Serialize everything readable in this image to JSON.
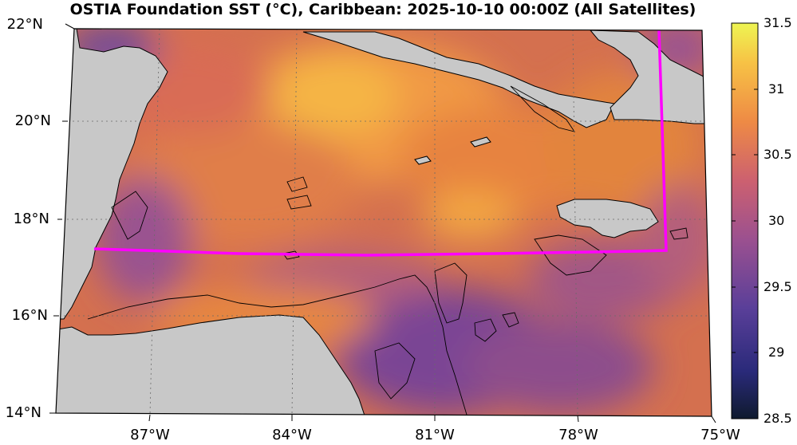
{
  "title": "OSTIA Foundation SST (°C), Caribbean: 2025-10-10 00:00Z (All Satellites)",
  "lat_labels": [
    "22°N",
    "20°N",
    "18°N",
    "16°N",
    "14°N"
  ],
  "lon_labels": [
    "87°W",
    "84°W",
    "81°W",
    "78°W",
    "75°W"
  ],
  "colorbar": {
    "ticks": [
      "31.5",
      "31",
      "30.5",
      "30",
      "29.5",
      "29",
      "28.5"
    ],
    "min": 28.5,
    "max": 31.5
  },
  "colors": {
    "land": "#c8c8c8",
    "highlight_box": "#ff00ff",
    "warm": "#f0a040",
    "cool": "#3a2b8a"
  }
}
